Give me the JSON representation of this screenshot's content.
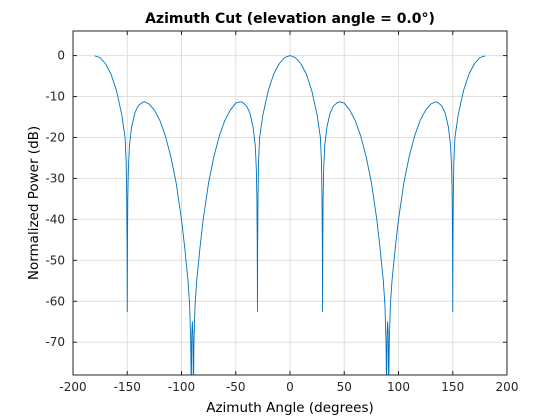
{
  "chart_data": {
    "type": "line",
    "title": "Azimuth Cut (elevation angle = 0.0°)",
    "xlabel": "Azimuth Angle (degrees)",
    "ylabel": "Normalized Power (dB)",
    "xlim": [
      -200,
      200
    ],
    "ylim": [
      -78,
      6
    ],
    "xticks": [
      -200,
      -150,
      -100,
      -50,
      0,
      50,
      100,
      150,
      200
    ],
    "yticks": [
      0,
      -10,
      -20,
      -30,
      -40,
      -50,
      -60,
      -70
    ],
    "grid": true,
    "series": [
      {
        "color": "#0072bd",
        "points": [
          [
            -180,
            -0.05
          ],
          [
            -175,
            -0.5
          ],
          [
            -170,
            -2.0
          ],
          [
            -165,
            -4.5
          ],
          [
            -160,
            -8.5
          ],
          [
            -155,
            -14.5
          ],
          [
            -152,
            -20.0
          ],
          [
            -151,
            -26.0
          ],
          [
            -150.5,
            -35.0
          ],
          [
            -150.2,
            -46.0
          ],
          [
            -150,
            -62.5
          ],
          [
            -149.8,
            -46.0
          ],
          [
            -149.5,
            -35.0
          ],
          [
            -149,
            -28.0
          ],
          [
            -148,
            -22.0
          ],
          [
            -146,
            -17.5
          ],
          [
            -143,
            -14.0
          ],
          [
            -140,
            -12.3
          ],
          [
            -136,
            -11.4
          ],
          [
            -134,
            -11.3
          ],
          [
            -130,
            -11.8
          ],
          [
            -125,
            -13.3
          ],
          [
            -120,
            -15.8
          ],
          [
            -115,
            -19.5
          ],
          [
            -110,
            -24.5
          ],
          [
            -105,
            -31.0
          ],
          [
            -100,
            -40.0
          ],
          [
            -97,
            -47.0
          ],
          [
            -94,
            -55.0
          ],
          [
            -92.5,
            -61.0
          ],
          [
            -91.5,
            -70.0
          ],
          [
            -91,
            -82.0
          ],
          [
            -90.5,
            -68.0
          ],
          [
            -90,
            -65.0
          ],
          [
            -89.5,
            -68.0
          ],
          [
            -89,
            -82.0
          ],
          [
            -88.5,
            -70.0
          ],
          [
            -87.5,
            -61.0
          ],
          [
            -86,
            -55.0
          ],
          [
            -83,
            -47.0
          ],
          [
            -80,
            -40.0
          ],
          [
            -75,
            -31.0
          ],
          [
            -70,
            -24.5
          ],
          [
            -65,
            -19.5
          ],
          [
            -60,
            -15.8
          ],
          [
            -55,
            -13.3
          ],
          [
            -50,
            -11.6
          ],
          [
            -46,
            -11.3
          ],
          [
            -44,
            -11.4
          ],
          [
            -40,
            -12.3
          ],
          [
            -37,
            -14.0
          ],
          [
            -34,
            -17.5
          ],
          [
            -32,
            -22.0
          ],
          [
            -31,
            -28.0
          ],
          [
            -30.5,
            -35.0
          ],
          [
            -30.2,
            -46.0
          ],
          [
            -30,
            -62.5
          ],
          [
            -29.8,
            -46.0
          ],
          [
            -29.5,
            -35.0
          ],
          [
            -29,
            -26.0
          ],
          [
            -28,
            -20.0
          ],
          [
            -25,
            -14.5
          ],
          [
            -20,
            -8.5
          ],
          [
            -15,
            -4.5
          ],
          [
            -10,
            -2.0
          ],
          [
            -5,
            -0.5
          ],
          [
            0,
            0
          ],
          [
            5,
            -0.5
          ],
          [
            10,
            -2.0
          ],
          [
            15,
            -4.5
          ],
          [
            20,
            -8.5
          ],
          [
            25,
            -14.5
          ],
          [
            28,
            -20.0
          ],
          [
            29,
            -26.0
          ],
          [
            29.5,
            -35.0
          ],
          [
            29.8,
            -46.0
          ],
          [
            30,
            -62.5
          ],
          [
            30.2,
            -46.0
          ],
          [
            30.5,
            -35.0
          ],
          [
            31,
            -28.0
          ],
          [
            32,
            -22.0
          ],
          [
            34,
            -17.5
          ],
          [
            37,
            -14.0
          ],
          [
            40,
            -12.3
          ],
          [
            44,
            -11.4
          ],
          [
            46,
            -11.3
          ],
          [
            50,
            -11.6
          ],
          [
            55,
            -13.3
          ],
          [
            60,
            -15.8
          ],
          [
            65,
            -19.5
          ],
          [
            70,
            -24.5
          ],
          [
            75,
            -31.0
          ],
          [
            80,
            -40.0
          ],
          [
            83,
            -47.0
          ],
          [
            86,
            -55.0
          ],
          [
            87.5,
            -61.0
          ],
          [
            88.5,
            -70.0
          ],
          [
            89,
            -82.0
          ],
          [
            89.5,
            -68.0
          ],
          [
            90,
            -65.0
          ],
          [
            90.5,
            -68.0
          ],
          [
            91,
            -82.0
          ],
          [
            91.5,
            -70.0
          ],
          [
            92.5,
            -61.0
          ],
          [
            94,
            -55.0
          ],
          [
            97,
            -47.0
          ],
          [
            100,
            -40.0
          ],
          [
            105,
            -31.0
          ],
          [
            110,
            -24.5
          ],
          [
            115,
            -19.5
          ],
          [
            120,
            -15.8
          ],
          [
            125,
            -13.3
          ],
          [
            130,
            -11.8
          ],
          [
            134,
            -11.3
          ],
          [
            136,
            -11.4
          ],
          [
            140,
            -12.3
          ],
          [
            143,
            -14.0
          ],
          [
            146,
            -17.5
          ],
          [
            148,
            -22.0
          ],
          [
            149,
            -28.0
          ],
          [
            149.5,
            -35.0
          ],
          [
            149.8,
            -46.0
          ],
          [
            150,
            -62.5
          ],
          [
            150.2,
            -46.0
          ],
          [
            150.5,
            -35.0
          ],
          [
            151,
            -26.0
          ],
          [
            152,
            -20.0
          ],
          [
            155,
            -14.5
          ],
          [
            160,
            -8.5
          ],
          [
            165,
            -4.5
          ],
          [
            170,
            -2.0
          ],
          [
            175,
            -0.5
          ],
          [
            180,
            -0.05
          ]
        ]
      }
    ]
  }
}
